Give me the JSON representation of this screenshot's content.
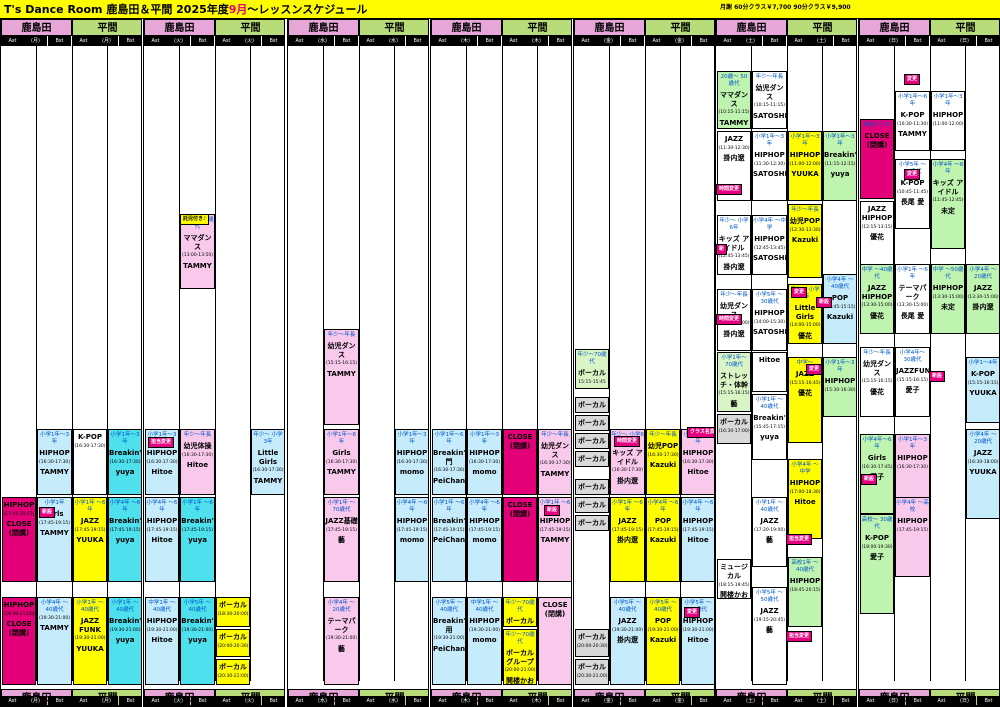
{
  "header": {
    "title_main": "T's Dance Room  鹿島田＆平間  2025年度",
    "title_month": "9月",
    "title_rest": "〜レッスンスケジュール",
    "price_note": "月謝  60分クラス￥7,700  90分クラス￥9,900"
  },
  "locations": {
    "kashimada": "鹿島田",
    "hirama": "平間"
  },
  "sub_labels": {
    "ast": "Ast",
    "bst": "Bst",
    "days": [
      "(月)",
      "(火)",
      "(水)",
      "(木)",
      "(金)",
      "(土)",
      "(日)"
    ]
  },
  "tags": {
    "charge": "担当変更",
    "new": "新設",
    "class_change": "クラス名変更",
    "time_change": "時間変更",
    "change": "変更",
    "trial": "託児付き♪",
    "shin": "新",
    "class_name_change2": "クラス名＆\n担当変更"
  },
  "classes": {
    "mon_k1": {
      "lv": "",
      "nm": "HIPHOP",
      "tm": "(17:45-19:15)",
      "in": "CLOSE (閉講)"
    },
    "mon_k2": {
      "lv": "小学1年〜3年",
      "nm": "HIPHOP",
      "tm": "(16:30-17:30)",
      "in": "TAMMY"
    },
    "mon_k3": {
      "lv": "小学1年",
      "nm": "Girls",
      "tm": "(17:45-19:15)",
      "in": "TAMMY"
    },
    "mon_k4": {
      "lv": "",
      "nm": "HIPHOP",
      "tm": "(19:30-21:00)",
      "in": "CLOSE (閉講)"
    },
    "mon_k5": {
      "lv": "小学4年 〜40歳代",
      "nm": "",
      "tm": "(19:30-21:00)",
      "in": "TAMMY"
    },
    "mon_h1": {
      "lv": "",
      "nm": "K-POP",
      "tm": "(16:30-17:30)",
      "in": ""
    },
    "mon_h2": {
      "lv": "小学1年 〜6年",
      "nm": "JAZZ",
      "tm": "(17:45-19:15)",
      "in": "YUUKA"
    },
    "mon_h3": {
      "lv": "小学1年 〜40歳代",
      "nm": "JAZZ FUNK",
      "tm": "(19:30-21:00)",
      "in": "YUUKA"
    },
    "mon_h4": {
      "lv": "小学1年〜3年",
      "nm": "Breakin'",
      "tm": "(16:30-17:30)",
      "in": "yuya"
    },
    "mon_h5": {
      "lv": "小学4年 〜6年",
      "nm": "Breakin'",
      "tm": "(17:45-19:15)",
      "in": "yuya"
    },
    "mon_h6": {
      "lv": "小学1年 〜40歳代",
      "nm": "Breakin'",
      "tm": "(19:30-21:00)",
      "in": "yuya"
    },
    "tue_k1": {
      "lv": "20歳〜 50歳代",
      "nm": "ママダンス",
      "tm": "(13:00-13:50)",
      "in": "TAMMY"
    },
    "tue_k2": {
      "lv": "小学1年〜3年",
      "nm": "HIPHOP",
      "tm": "(16:30-17:30)",
      "in": "Hitoe"
    },
    "tue_k3": {
      "lv": "年少〜年長",
      "nm": "幼児体操",
      "tm": "(16:30-17:30)",
      "in": "Hitoe"
    },
    "tue_k4": {
      "lv": "小学4年 〜6年",
      "nm": "HIPHOP",
      "tm": "(17:45-19:15)",
      "in": "Hitoe"
    },
    "tue_k5": {
      "lv": "小学1年 〜6年",
      "nm": "Breakin'",
      "tm": "(17:45-19:15)",
      "in": "yuya"
    },
    "tue_k6": {
      "lv": "中学1年 〜40歳代",
      "nm": "HIPHOP",
      "tm": "(19:30-21:00)",
      "in": "Hitoe"
    },
    "tue_k7": {
      "lv": "小学5年 〜40歳代",
      "nm": "Breakin'",
      "tm": "(19:30-21:00)",
      "in": "yuya"
    },
    "tue_h1": {
      "lv": "年少〜 小学3年",
      "nm": "Little Girls",
      "tm": "(16:30-17:30)",
      "in": "TAMMY"
    },
    "tue_h2": {
      "lv": "",
      "nm": "ボーカル",
      "tm": "(18:30-20:00)",
      "in": ""
    },
    "tue_h3": {
      "lv": "",
      "nm": "ボーカル",
      "tm": "(20:00-20:30)",
      "in": ""
    },
    "tue_h4": {
      "lv": "",
      "nm": "ボーカル",
      "tm": "(20:30-21:00)",
      "in": ""
    },
    "wed_k1": {
      "lv": "年少〜年長",
      "nm": "幼児ダンス",
      "tm": "(15:15-16:15)",
      "in": "TAMMY"
    },
    "wed_k2": {
      "lv": "小学1年〜6年",
      "nm": "Girls",
      "tm": "(16:30-17:30)",
      "in": "TAMMY"
    },
    "wed_k3": {
      "lv": "小学1年 〜70歳代",
      "nm": "JAZZ基礎",
      "tm": "(17:45-19:15)",
      "in": "藝"
    },
    "wed_k4": {
      "lv": "小学4年 〜20歳代",
      "nm": "テーマパーク",
      "tm": "(19:30-21:00)",
      "in": "藝"
    },
    "wed_h1": {
      "lv": "小学1年〜3年",
      "nm": "HIPHOP",
      "tm": "(16:30-17:30)",
      "in": "momo"
    },
    "wed_h2": {
      "lv": "小学4年 〜6年",
      "nm": "HIPHOP",
      "tm": "(17:45-19:15)",
      "in": "momo"
    },
    "thu_k1": {
      "lv": "小学1年〜6年",
      "nm": "Breakin'入門",
      "tm": "(16:30-17:30)",
      "in": "PeiChan"
    },
    "thu_k2": {
      "lv": "小学1年〜3年",
      "nm": "HIPHOP",
      "tm": "(16:30-17:30)",
      "in": "momo"
    },
    "thu_k3": {
      "lv": "小学1年 〜6年",
      "nm": "Breakin'",
      "tm": "(17:45-19:15)",
      "in": "PeiChan"
    },
    "thu_k4": {
      "lv": "小学4年 〜6年",
      "nm": "HIPHOP",
      "tm": "(17:45-19:15)",
      "in": "momo"
    },
    "thu_k5": {
      "lv": "小学5年 〜40歳代",
      "nm": "Breakin'応用",
      "tm": "(19:30-21:00)",
      "in": "PeiChan"
    },
    "thu_k6": {
      "lv": "中学1年 〜40歳代",
      "nm": "HIPHOP",
      "tm": "(19:30-21:00)",
      "in": "momo"
    },
    "thu_h1": {
      "lv": "",
      "nm": "CLOSE (閉講)",
      "tm": "",
      "in": ""
    },
    "thu_h2": {
      "lv": "年少〜年長",
      "nm": "幼児ダンス",
      "tm": "(16:30-17:30)",
      "in": "TAMMY"
    },
    "thu_h3": {
      "lv": "",
      "nm": "CLOSE (閉講)",
      "tm": "",
      "in": ""
    },
    "thu_h4": {
      "lv": "小学1年 〜6年",
      "nm": "HIPHOP",
      "tm": "(17:45-19:15)",
      "in": "TAMMY"
    },
    "thu_h5": {
      "lv": "年少〜70歳代",
      "nm": "ボーカル",
      "tm": "(19:00-19:30)",
      "in": ""
    },
    "thu_h6": {
      "lv": "年少〜70歳代",
      "nm": "ボーカル グループ",
      "tm": "(20:00-21:00)",
      "in": "鬨楼かおる"
    },
    "thu_h7": {
      "lv": "",
      "nm": "CLOSE (閉講)",
      "tm": "",
      "in": ""
    },
    "fri_k1": {
      "lv": "年少〜70歳代",
      "nm": "ボーカル",
      "tm": "15:15-15:45",
      "in": ""
    },
    "fri_k2": {
      "lv": "年少〜 小学6年",
      "nm": "キッズ アイドル",
      "tm": "(16:30-17:30)",
      "in": "掛内遼"
    },
    "fri_k3": {
      "lv": "小学1年 〜6年",
      "nm": "JAZZ",
      "tm": "(17:45-19:15)",
      "in": "掛内遼"
    },
    "fri_k4": {
      "lv": "小学5年 〜40歳代",
      "nm": "JAZZ",
      "tm": "(19:30-21:00)",
      "in": "掛内遼"
    },
    "fri_k5": {
      "lv": "年少〜年長",
      "nm": "幼児POP",
      "tm": "(16:30-17:30)",
      "in": "Kazuki"
    },
    "fri_k6": {
      "lv": "小学4年 〜6年",
      "nm": "POP",
      "tm": "(17:45-19:15)",
      "in": "Kazuki"
    },
    "fri_k7": {
      "lv": "小学5年 〜40歳代",
      "nm": "POP",
      "tm": "(19:30-21:00)",
      "in": "Kazuki"
    },
    "fri_h1": {
      "lv": "小学1年〜6年",
      "nm": "HIPHOP",
      "tm": "(16:30-17:30)",
      "in": "Hitoe"
    },
    "fri_h2": {
      "lv": "小学4年 〜6年",
      "nm": "HIPHOP",
      "tm": "(17:45-19:15)",
      "in": "Hitoe"
    },
    "fri_h3": {
      "lv": "小学5年 〜20歳代",
      "nm": "HIPHOP",
      "tm": "(19:30-21:00)",
      "in": "Hitoe"
    },
    "fri_g1": {
      "lv": "",
      "nm": "ボーカル",
      "tm": "",
      "in": ""
    },
    "fri_g2": {
      "lv": "",
      "nm": "ボーカル",
      "tm": "",
      "in": ""
    },
    "fri_g3": {
      "lv": "",
      "nm": "ボーカル",
      "tm": "",
      "in": ""
    },
    "fri_g4": {
      "lv": "",
      "nm": "ボーカル",
      "tm": "",
      "in": ""
    },
    "fri_g5": {
      "lv": "",
      "nm": "ボーカル",
      "tm": "",
      "in": ""
    },
    "fri_g6": {
      "lv": "",
      "nm": "ボーカル",
      "tm": "",
      "in": ""
    },
    "fri_g7": {
      "lv": "",
      "nm": "ボーカル",
      "tm": "",
      "in": ""
    },
    "fri_g8": {
      "lv": "",
      "nm": "ボーカル",
      "tm": "(20:00-20:30)",
      "in": ""
    },
    "fri_g9": {
      "lv": "",
      "nm": "ボーカル",
      "tm": "(20:30-21:00)",
      "in": ""
    },
    "sat_k1": {
      "lv": "20歳〜 50歳代",
      "nm": "ママダンス",
      "tm": "(10:15-11:15)",
      "in": "TAMMY"
    },
    "sat_k2": {
      "lv": "年少〜年長",
      "nm": "幼児ダンス",
      "tm": "(10:15-11:15)",
      "in": "SATOSHI"
    },
    "sat_k3": {
      "lv": "",
      "nm": "JAZZ",
      "tm": "(11:30-12:30)",
      "in": "掛内遼"
    },
    "sat_k4": {
      "lv": "小学1年〜3年",
      "nm": "HIPHOP",
      "tm": "(11:30-12:30)",
      "in": "SATOSHI"
    },
    "sat_k5": {
      "lv": "年少〜 小学6年",
      "nm": "キッズ アイドル",
      "tm": "(12:45-13:45)",
      "in": "掛内遼"
    },
    "sat_k6": {
      "lv": "小学4年 〜中学",
      "nm": "HIPHOP",
      "tm": "(12:45-13:45)",
      "in": "SATOSHI"
    },
    "sat_k7": {
      "lv": "年少〜年長",
      "nm": "幼児ダンス",
      "tm": "(14:00-15:00)",
      "in": "掛内遼"
    },
    "sat_k8": {
      "lv": "小学5年 〜30歳代",
      "nm": "HIPHOP",
      "tm": "(14:00-15:30)",
      "in": "SATOSHI"
    },
    "sat_k9": {
      "lv": "小学1年〜 70歳代",
      "nm": "ストレッチ・体幹",
      "tm": "(15:15-16:15)",
      "in": "藝"
    },
    "sat_k10": {
      "lv": "",
      "nm": "Hitoe",
      "tm": "",
      "in": ""
    },
    "sat_k11": {
      "lv": "小学1年 〜40歳代",
      "nm": "Breakin'",
      "tm": "(15:45-17:15)",
      "in": "yuya"
    },
    "sat_k12": {
      "lv": "",
      "nm": "ボーカル",
      "tm": "(16:30-17:00)",
      "in": ""
    },
    "sat_k13": {
      "lv": "小学1年 〜40歳代",
      "nm": "JAZZ",
      "tm": "(17:20-19:00)",
      "in": "藝"
    },
    "sat_k14": {
      "lv": "",
      "nm": "ミュージカル",
      "tm": "(18:15-19:45)",
      "in": "鬨楼かおる"
    },
    "sat_k15": {
      "lv": "小学5年 〜50歳代",
      "nm": "JAZZ",
      "tm": "(19:15-20:45)",
      "in": "藝"
    },
    "sat_h1": {
      "lv": "小学1年〜3年",
      "nm": "HIPHOP",
      "tm": "(11:00-12:00)",
      "in": "YUUKA"
    },
    "sat_h2": {
      "lv": "小学1年〜3年",
      "nm": "Breakin'",
      "tm": "(11:15-12:15)",
      "in": "yuya"
    },
    "sat_h3": {
      "lv": "年少〜年長",
      "nm": "幼児POP",
      "tm": "(12:30-13:30)",
      "in": "Kazuki"
    },
    "sat_h4": {
      "lv": "年少〜 小学3年",
      "nm": "Little Girls",
      "tm": "(14:00-15:00)",
      "in": "優花"
    },
    "sat_h5": {
      "lv": "小学4年 〜40歳代",
      "nm": "POP",
      "tm": "(13:45-15:15)",
      "in": "Kazuki"
    },
    "sat_h6": {
      "lv": "中学〜",
      "nm": "JAZZ",
      "tm": "(15:15-16:45)",
      "in": "優花"
    },
    "sat_h7": {
      "lv": "小学1年〜3年",
      "nm": "HIPHOP",
      "tm": "(15:30-16:30)",
      "in": ""
    },
    "sat_h8": {
      "lv": "小学4年 〜中学",
      "nm": "HIPHOP",
      "tm": "(17:00-18:30)",
      "in": "Hitoe"
    },
    "sat_h9": {
      "lv": "高校1年 〜40歳代",
      "nm": "HIPHOP",
      "tm": "(18:45-20:15)",
      "in": ""
    },
    "sun_k1": {
      "lv": "体操クラス",
      "nm": "CLOSE (閉講)",
      "tm": "",
      "in": ""
    },
    "sun_k2": {
      "lv": "小学1年〜6年",
      "nm": "K-POP",
      "tm": "(10:30-11:30)",
      "in": "TAMMY"
    },
    "sun_k3": {
      "lv": "小学5年 〜30歳代",
      "nm": "K-POP",
      "tm": "(10:45-11:45)",
      "in": "長尾 愛"
    },
    "sun_k4": {
      "lv": "",
      "nm": "JAZZ HIPHOP",
      "tm": "(12:15-13:15)",
      "in": "優花"
    },
    "sun_k5": {
      "lv": "中学 〜40歳代",
      "nm": "JAZZ HIPHOP",
      "tm": "(13:30-15:00)",
      "in": "優花"
    },
    "sun_k6": {
      "lv": "小学1年 〜6年",
      "nm": "テーマパーク",
      "tm": "(13:30-15:00)",
      "in": "長尾 愛"
    },
    "sun_k7": {
      "lv": "年少〜年長",
      "nm": "幼児ダンス",
      "tm": "(15:15-16:15)",
      "in": "優花"
    },
    "sun_k8": {
      "lv": "小学4年〜 30歳代",
      "nm": "JAZZFUNK",
      "tm": "(15:15-16:15)",
      "in": "愛子"
    },
    "sun_k9": {
      "lv": "小学4年〜6年",
      "nm": "Girls",
      "tm": "(16:30-17:45)",
      "in": "愛子"
    },
    "sun_k10": {
      "lv": "小学1年〜3年",
      "nm": "HIPHOP",
      "tm": "(16:30-17:30)",
      "in": ""
    },
    "sun_k11": {
      "lv": "高校〜 30歳代",
      "nm": "K-POP",
      "tm": "(18:00-19:30)",
      "in": "愛子"
    },
    "sun_k12": {
      "lv": "小学4年 〜高校",
      "nm": "HIPHOP",
      "tm": "(17:45-19:15)",
      "in": ""
    },
    "sun_h1": {
      "lv": "小学1年〜3年",
      "nm": "HIPHOP",
      "tm": "(11:00-12:00)",
      "in": ""
    },
    "sun_h2": {
      "lv": "小学4年 〜6年",
      "nm": "キッズ アイドル",
      "tm": "(11:45-12:45)",
      "in": "未定"
    },
    "sun_h3": {
      "lv": "中学 〜50歳代",
      "nm": "HIPHOP",
      "tm": "(13:30-15:00)",
      "in": "未定"
    },
    "sun_h4": {
      "lv": "小学4年 〜20歳代",
      "nm": "JAZZ",
      "tm": "(13:30-15:00)",
      "in": "掛内遼"
    },
    "sun_h5": {
      "lv": "小学1〜4年",
      "nm": "K-POP",
      "tm": "(15:15-16:15)",
      "in": "YUUKA"
    },
    "sun_h6": {
      "lv": "小学4年 〜20歳代",
      "nm": "JAZZ",
      "tm": "(16:30-18:00)",
      "in": "YUUKA"
    }
  }
}
